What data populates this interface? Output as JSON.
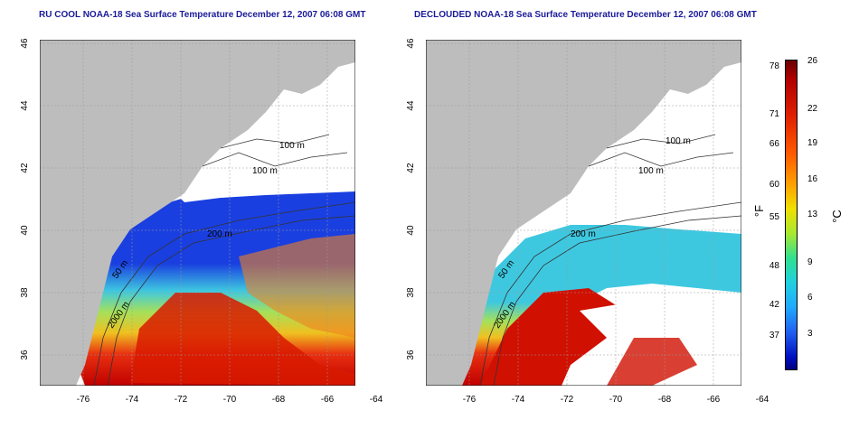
{
  "left_panel": {
    "title": "RU COOL NOAA-18 Sea Surface Temperature December 12, 2007 06:08 GMT"
  },
  "right_panel": {
    "title": "DECLOUDED NOAA-18 Sea Surface Temperature December 12, 2007 06:08 GMT"
  },
  "axes": {
    "lon_ticks": [
      "-76",
      "-74",
      "-72",
      "-70",
      "-68",
      "-66",
      "-64"
    ],
    "lat_ticks": [
      "36",
      "38",
      "40",
      "42",
      "44",
      "46"
    ]
  },
  "contour_labels": [
    "100 m",
    "100 m",
    "200 m",
    "50 m",
    "2000 m"
  ],
  "colorbar": {
    "fahrenheit_ticks": [
      "78",
      "71",
      "66",
      "60",
      "55",
      "48",
      "42",
      "37"
    ],
    "celsius_ticks": [
      "26",
      "22",
      "19",
      "16",
      "13",
      "9",
      "6",
      "3"
    ],
    "fahrenheit_unit": "°F",
    "celsius_unit": "°C"
  },
  "colors": {
    "land": "#bdbdbd",
    "title": "#1a1a9a",
    "cloud": "#ffffff"
  }
}
